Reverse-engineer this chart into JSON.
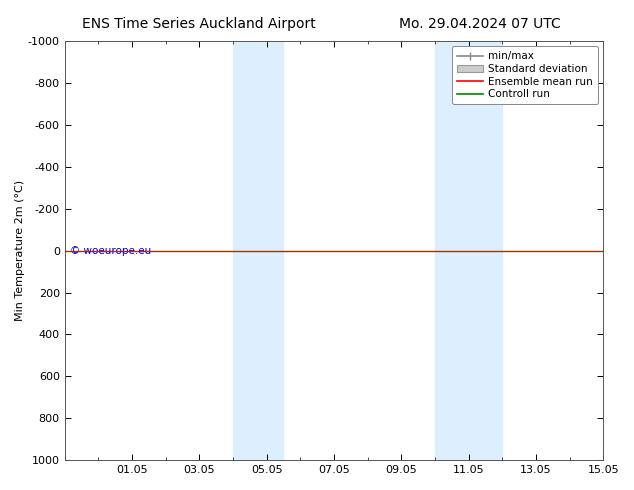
{
  "title_left": "ENS Time Series Auckland Airport",
  "title_right": "Mo. 29.04.2024 07 UTC",
  "ylabel": "Min Temperature 2m (°C)",
  "ylim_bottom": 1000,
  "ylim_top": -1000,
  "yticks": [
    -1000,
    -800,
    -600,
    -400,
    -200,
    0,
    200,
    400,
    600,
    800,
    1000
  ],
  "xlim": [
    0,
    16
  ],
  "xtick_positions": [
    2,
    4,
    6,
    8,
    10,
    12,
    14,
    16
  ],
  "xtick_labels": [
    "01.05",
    "03.05",
    "05.05",
    "07.05",
    "09.05",
    "11.05",
    "13.05",
    "15.05"
  ],
  "shaded_regions": [
    {
      "xmin": 5.0,
      "xmax": 5.5
    },
    {
      "xmin": 5.5,
      "xmax": 6.5
    },
    {
      "xmin": 11.0,
      "xmax": 11.5
    },
    {
      "xmin": 11.5,
      "xmax": 13.0
    }
  ],
  "shade_color": "#ddeeff",
  "green_line_y": 0,
  "red_line_y": 0,
  "watermark": "© woeurope.eu",
  "watermark_color": "#0000cc",
  "bg_color": "#ffffff",
  "plot_bg_color": "#ffffff",
  "legend_entries": [
    "min/max",
    "Standard deviation",
    "Ensemble mean run",
    "Controll run"
  ],
  "title_fontsize": 10,
  "tick_fontsize": 8,
  "ylabel_fontsize": 8
}
